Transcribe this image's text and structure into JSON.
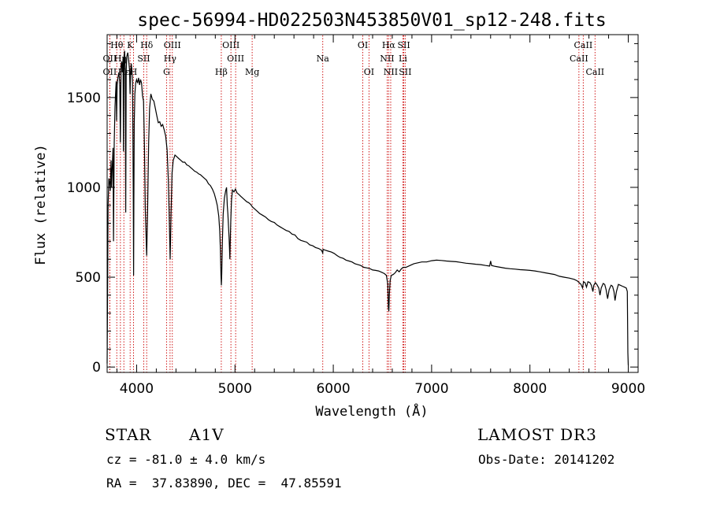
{
  "chart_data": {
    "type": "line",
    "title": "spec-56994-HD022503N453850V01_sp12-248.fits",
    "xlabel": "Wavelength (Å)",
    "ylabel": "Flux (relative)",
    "xlim": [
      3700,
      9100
    ],
    "ylim": [
      -30,
      1850
    ],
    "x_ticks": [
      4000,
      5000,
      6000,
      7000,
      8000,
      9000
    ],
    "y_ticks": [
      0,
      500,
      1000,
      1500
    ],
    "grid": false,
    "series": [
      {
        "name": "flux",
        "points": [
          [
            3700,
            20
          ],
          [
            3703,
            300
          ],
          [
            3710,
            900
          ],
          [
            3718,
            1050
          ],
          [
            3725,
            1030
          ],
          [
            3732,
            980
          ],
          [
            3740,
            1150
          ],
          [
            3745,
            1000
          ],
          [
            3750,
            1080
          ],
          [
            3760,
            1220
          ],
          [
            3765,
            700
          ],
          [
            3772,
            1250
          ],
          [
            3780,
            1450
          ],
          [
            3788,
            1550
          ],
          [
            3792,
            1590
          ],
          [
            3796,
            1370
          ],
          [
            3802,
            1570
          ],
          [
            3810,
            1610
          ],
          [
            3820,
            1640
          ],
          [
            3828,
            1580
          ],
          [
            3835,
            1250
          ],
          [
            3842,
            1680
          ],
          [
            3848,
            1700
          ],
          [
            3855,
            1640
          ],
          [
            3862,
            1720
          ],
          [
            3866,
            1200
          ],
          [
            3872,
            1730
          ],
          [
            3878,
            1760
          ],
          [
            3884,
            1640
          ],
          [
            3889,
            860
          ],
          [
            3894,
            1650
          ],
          [
            3900,
            1730
          ],
          [
            3910,
            1750
          ],
          [
            3920,
            1700
          ],
          [
            3928,
            1650
          ],
          [
            3933,
            1520
          ],
          [
            3938,
            1640
          ],
          [
            3945,
            1690
          ],
          [
            3952,
            1650
          ],
          [
            3958,
            1580
          ],
          [
            3962,
            1300
          ],
          [
            3966,
            950
          ],
          [
            3969,
            510
          ],
          [
            3972,
            900
          ],
          [
            3976,
            1350
          ],
          [
            3982,
            1520
          ],
          [
            3990,
            1580
          ],
          [
            4000,
            1600
          ],
          [
            4010,
            1580
          ],
          [
            4020,
            1610
          ],
          [
            4030,
            1570
          ],
          [
            4040,
            1600
          ],
          [
            4050,
            1580
          ],
          [
            4060,
            1510
          ],
          [
            4070,
            1480
          ],
          [
            4080,
            1220
          ],
          [
            4088,
            880
          ],
          [
            4102,
            620
          ],
          [
            4112,
            880
          ],
          [
            4122,
            1250
          ],
          [
            4132,
            1440
          ],
          [
            4145,
            1520
          ],
          [
            4160,
            1490
          ],
          [
            4175,
            1480
          ],
          [
            4190,
            1440
          ],
          [
            4205,
            1400
          ],
          [
            4220,
            1360
          ],
          [
            4235,
            1365
          ],
          [
            4250,
            1340
          ],
          [
            4265,
            1350
          ],
          [
            4280,
            1320
          ],
          [
            4295,
            1285
          ],
          [
            4310,
            1210
          ],
          [
            4322,
            1050
          ],
          [
            4330,
            880
          ],
          [
            4341,
            600
          ],
          [
            4350,
            850
          ],
          [
            4360,
            1080
          ],
          [
            4372,
            1150
          ],
          [
            4390,
            1180
          ],
          [
            4410,
            1170
          ],
          [
            4430,
            1160
          ],
          [
            4450,
            1150
          ],
          [
            4470,
            1140
          ],
          [
            4490,
            1140
          ],
          [
            4510,
            1125
          ],
          [
            4530,
            1120
          ],
          [
            4550,
            1110
          ],
          [
            4570,
            1100
          ],
          [
            4590,
            1090
          ],
          [
            4610,
            1085
          ],
          [
            4630,
            1075
          ],
          [
            4650,
            1070
          ],
          [
            4670,
            1060
          ],
          [
            4690,
            1050
          ],
          [
            4710,
            1040
          ],
          [
            4730,
            1020
          ],
          [
            4750,
            1010
          ],
          [
            4770,
            990
          ],
          [
            4790,
            965
          ],
          [
            4805,
            935
          ],
          [
            4820,
            900
          ],
          [
            4835,
            840
          ],
          [
            4845,
            760
          ],
          [
            4852,
            650
          ],
          [
            4858,
            510
          ],
          [
            4862,
            455
          ],
          [
            4866,
            520
          ],
          [
            4872,
            700
          ],
          [
            4880,
            850
          ],
          [
            4892,
            940
          ],
          [
            4905,
            980
          ],
          [
            4915,
            1000
          ],
          [
            4922,
            900
          ],
          [
            4928,
            850
          ],
          [
            4935,
            780
          ],
          [
            4940,
            720
          ],
          [
            4945,
            650
          ],
          [
            4948,
            600
          ],
          [
            4952,
            700
          ],
          [
            4958,
            820
          ],
          [
            4965,
            930
          ],
          [
            4975,
            985
          ],
          [
            4990,
            975
          ],
          [
            5005,
            990
          ],
          [
            5020,
            970
          ],
          [
            5040,
            960
          ],
          [
            5060,
            950
          ],
          [
            5080,
            940
          ],
          [
            5100,
            930
          ],
          [
            5120,
            920
          ],
          [
            5140,
            915
          ],
          [
            5160,
            905
          ],
          [
            5180,
            890
          ],
          [
            5200,
            880
          ],
          [
            5220,
            870
          ],
          [
            5250,
            855
          ],
          [
            5280,
            845
          ],
          [
            5310,
            835
          ],
          [
            5340,
            820
          ],
          [
            5370,
            810
          ],
          [
            5400,
            805
          ],
          [
            5430,
            790
          ],
          [
            5460,
            780
          ],
          [
            5490,
            770
          ],
          [
            5520,
            760
          ],
          [
            5550,
            755
          ],
          [
            5580,
            740
          ],
          [
            5610,
            735
          ],
          [
            5640,
            715
          ],
          [
            5670,
            705
          ],
          [
            5700,
            700
          ],
          [
            5730,
            695
          ],
          [
            5760,
            680
          ],
          [
            5790,
            675
          ],
          [
            5820,
            665
          ],
          [
            5850,
            660
          ],
          [
            5880,
            650
          ],
          [
            5893,
            635
          ],
          [
            5896,
            655
          ],
          [
            5920,
            650
          ],
          [
            5950,
            645
          ],
          [
            5980,
            640
          ],
          [
            6010,
            632
          ],
          [
            6040,
            620
          ],
          [
            6070,
            610
          ],
          [
            6100,
            605
          ],
          [
            6130,
            595
          ],
          [
            6160,
            590
          ],
          [
            6190,
            585
          ],
          [
            6220,
            575
          ],
          [
            6250,
            570
          ],
          [
            6280,
            565
          ],
          [
            6310,
            555
          ],
          [
            6340,
            552
          ],
          [
            6370,
            548
          ],
          [
            6400,
            540
          ],
          [
            6430,
            538
          ],
          [
            6460,
            535
          ],
          [
            6490,
            528
          ],
          [
            6520,
            520
          ],
          [
            6540,
            510
          ],
          [
            6555,
            460
          ],
          [
            6560,
            330
          ],
          [
            6565,
            310
          ],
          [
            6570,
            400
          ],
          [
            6578,
            480
          ],
          [
            6590,
            510
          ],
          [
            6610,
            515
          ],
          [
            6630,
            525
          ],
          [
            6650,
            540
          ],
          [
            6670,
            530
          ],
          [
            6690,
            545
          ],
          [
            6710,
            555
          ],
          [
            6740,
            555
          ],
          [
            6780,
            565
          ],
          [
            6820,
            575
          ],
          [
            6860,
            580
          ],
          [
            6900,
            585
          ],
          [
            6950,
            585
          ],
          [
            7000,
            592
          ],
          [
            7050,
            595
          ],
          [
            7100,
            593
          ],
          [
            7150,
            590
          ],
          [
            7200,
            588
          ],
          [
            7250,
            586
          ],
          [
            7300,
            582
          ],
          [
            7350,
            578
          ],
          [
            7400,
            575
          ],
          [
            7450,
            572
          ],
          [
            7500,
            570
          ],
          [
            7550,
            565
          ],
          [
            7590,
            562
          ],
          [
            7600,
            590
          ],
          [
            7610,
            565
          ],
          [
            7650,
            560
          ],
          [
            7700,
            555
          ],
          [
            7750,
            550
          ],
          [
            7800,
            547
          ],
          [
            7850,
            545
          ],
          [
            7900,
            542
          ],
          [
            7950,
            540
          ],
          [
            8000,
            538
          ],
          [
            8050,
            535
          ],
          [
            8100,
            530
          ],
          [
            8150,
            525
          ],
          [
            8200,
            520
          ],
          [
            8250,
            515
          ],
          [
            8300,
            505
          ],
          [
            8350,
            500
          ],
          [
            8400,
            495
          ],
          [
            8450,
            488
          ],
          [
            8480,
            480
          ],
          [
            8500,
            470
          ],
          [
            8520,
            460
          ],
          [
            8535,
            440
          ],
          [
            8545,
            475
          ],
          [
            8560,
            470
          ],
          [
            8575,
            445
          ],
          [
            8590,
            475
          ],
          [
            8610,
            470
          ],
          [
            8625,
            455
          ],
          [
            8640,
            420
          ],
          [
            8650,
            455
          ],
          [
            8665,
            470
          ],
          [
            8680,
            460
          ],
          [
            8700,
            440
          ],
          [
            8712,
            400
          ],
          [
            8725,
            440
          ],
          [
            8745,
            465
          ],
          [
            8760,
            460
          ],
          [
            8775,
            430
          ],
          [
            8790,
            380
          ],
          [
            8805,
            430
          ],
          [
            8825,
            455
          ],
          [
            8840,
            450
          ],
          [
            8855,
            420
          ],
          [
            8865,
            370
          ],
          [
            8880,
            420
          ],
          [
            8900,
            460
          ],
          [
            8920,
            455
          ],
          [
            8940,
            450
          ],
          [
            8960,
            445
          ],
          [
            8980,
            440
          ],
          [
            8990,
            420
          ],
          [
            8996,
            80
          ],
          [
            9000,
            10
          ]
        ]
      }
    ],
    "line_markers": [
      {
        "label": "Hθ",
        "wavelength": 3798,
        "row": 1
      },
      {
        "label": "OII",
        "wavelength": 3727,
        "row": 2
      },
      {
        "label": "Hη",
        "wavelength": 3835,
        "row": 2
      },
      {
        "label": "OII",
        "wavelength": 3727,
        "row": 3
      },
      {
        "label": "Hε",
        "wavelength": 3870,
        "row": 3
      },
      {
        "label": "K",
        "wavelength": 3934,
        "row": 1
      },
      {
        "label": "H",
        "wavelength": 3968,
        "row": 3
      },
      {
        "label": "Hδ",
        "wavelength": 4102,
        "row": 1
      },
      {
        "label": "SII",
        "wavelength": 4072,
        "row": 2
      },
      {
        "label": "OIII",
        "wavelength": 4363,
        "row": 1
      },
      {
        "label": "Hγ",
        "wavelength": 4340,
        "row": 2
      },
      {
        "label": "G",
        "wavelength": 4304,
        "row": 3
      },
      {
        "label": "Hβ",
        "wavelength": 4861,
        "row": 3
      },
      {
        "label": "OIII",
        "wavelength": 4959,
        "row": 1
      },
      {
        "label": "OIII",
        "wavelength": 5007,
        "row": 2
      },
      {
        "label": "Mg",
        "wavelength": 5175,
        "row": 3
      },
      {
        "label": "Na",
        "wavelength": 5893,
        "row": 2
      },
      {
        "label": "OI",
        "wavelength": 6300,
        "row": 1
      },
      {
        "label": "OI",
        "wavelength": 6363,
        "row": 3
      },
      {
        "label": "Hα",
        "wavelength": 6563,
        "row": 1
      },
      {
        "label": "SII",
        "wavelength": 6717,
        "row": 1
      },
      {
        "label": "NII",
        "wavelength": 6548,
        "row": 2
      },
      {
        "label": "Li",
        "wavelength": 6708,
        "row": 2
      },
      {
        "label": "NII",
        "wavelength": 6584,
        "row": 3
      },
      {
        "label": "SII",
        "wavelength": 6731,
        "row": 3
      },
      {
        "label": "CaII",
        "wavelength": 8542,
        "row": 1
      },
      {
        "label": "CaII",
        "wavelength": 8498,
        "row": 2
      },
      {
        "label": "CaII",
        "wavelength": 8662,
        "row": 3
      }
    ]
  },
  "info": {
    "object_type": "STAR",
    "subclass": "A1V",
    "survey": "LAMOST DR3",
    "cz": "cz = -81.0 ± 4.0 km/s",
    "obs_date": "Obs-Date: 20141202",
    "coords": "RA =  37.83890, DEC =  47.85591"
  },
  "colors": {
    "spectrum": "#000000",
    "marker_line": "#cc0000",
    "axis": "#000000"
  }
}
